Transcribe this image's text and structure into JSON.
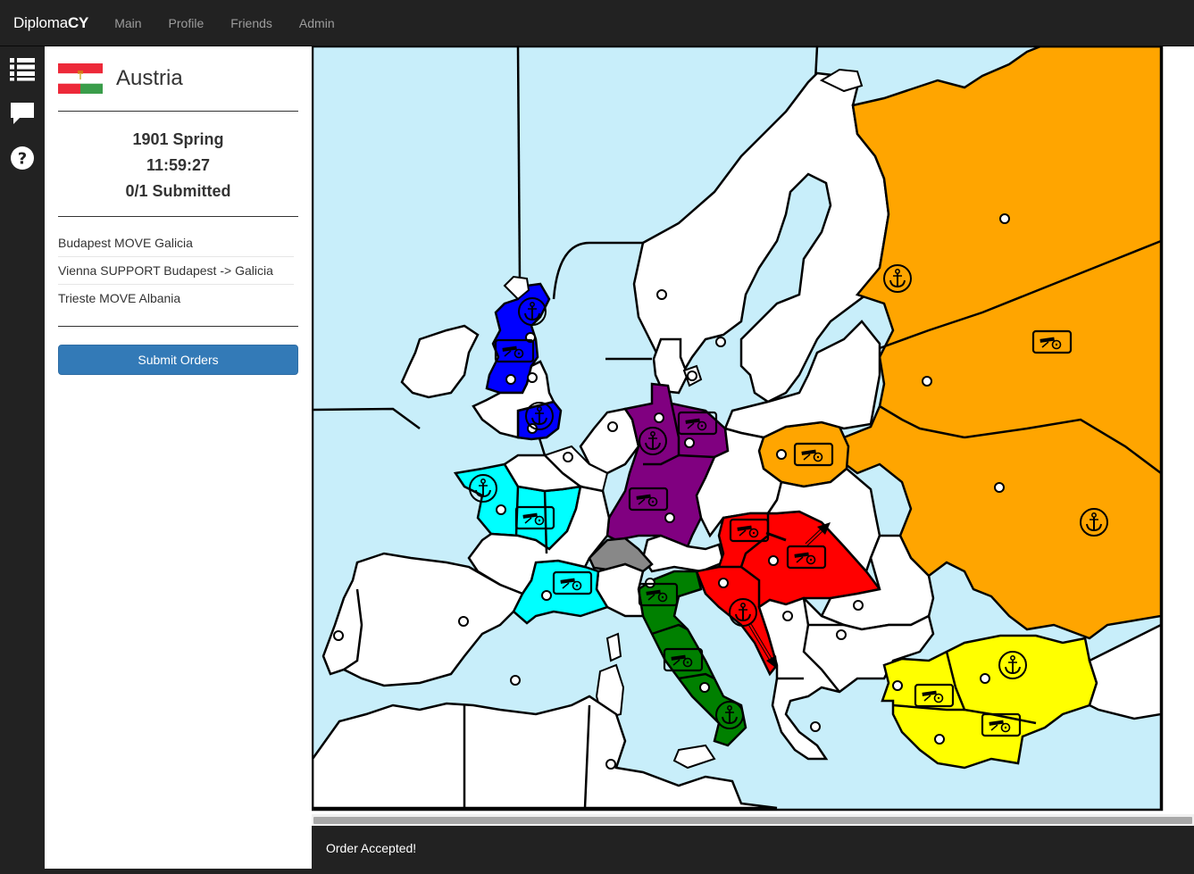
{
  "navbar": {
    "brand_regular": "Diploma",
    "brand_bold": "CY",
    "links": [
      "Main",
      "Profile",
      "Friends",
      "Admin"
    ]
  },
  "rail": {
    "icons": [
      "list-icon",
      "chat-icon",
      "help-icon"
    ]
  },
  "sidebar": {
    "country": "Austria",
    "season": "1901 Spring",
    "timer": "11:59:27",
    "submitted": "0/1 Submitted",
    "orders": [
      "Budapest MOVE Galicia",
      "Vienna SUPPORT Budapest -> Galicia",
      "Trieste MOVE Albania"
    ],
    "submit_label": "Submit Orders"
  },
  "map": {
    "sea_color": "#c8eefa",
    "land_color": "#ffffff",
    "powers": {
      "England": "#0000ff",
      "France": "#00ffff",
      "Germany": "#800080",
      "Austria": "#ff0000",
      "Italy": "#008000",
      "Russia": "#ffa500",
      "Turkey": "#ffff00",
      "Neutral-Switzerland": "#888888"
    }
  },
  "toast": {
    "message": "Order Accepted!"
  }
}
